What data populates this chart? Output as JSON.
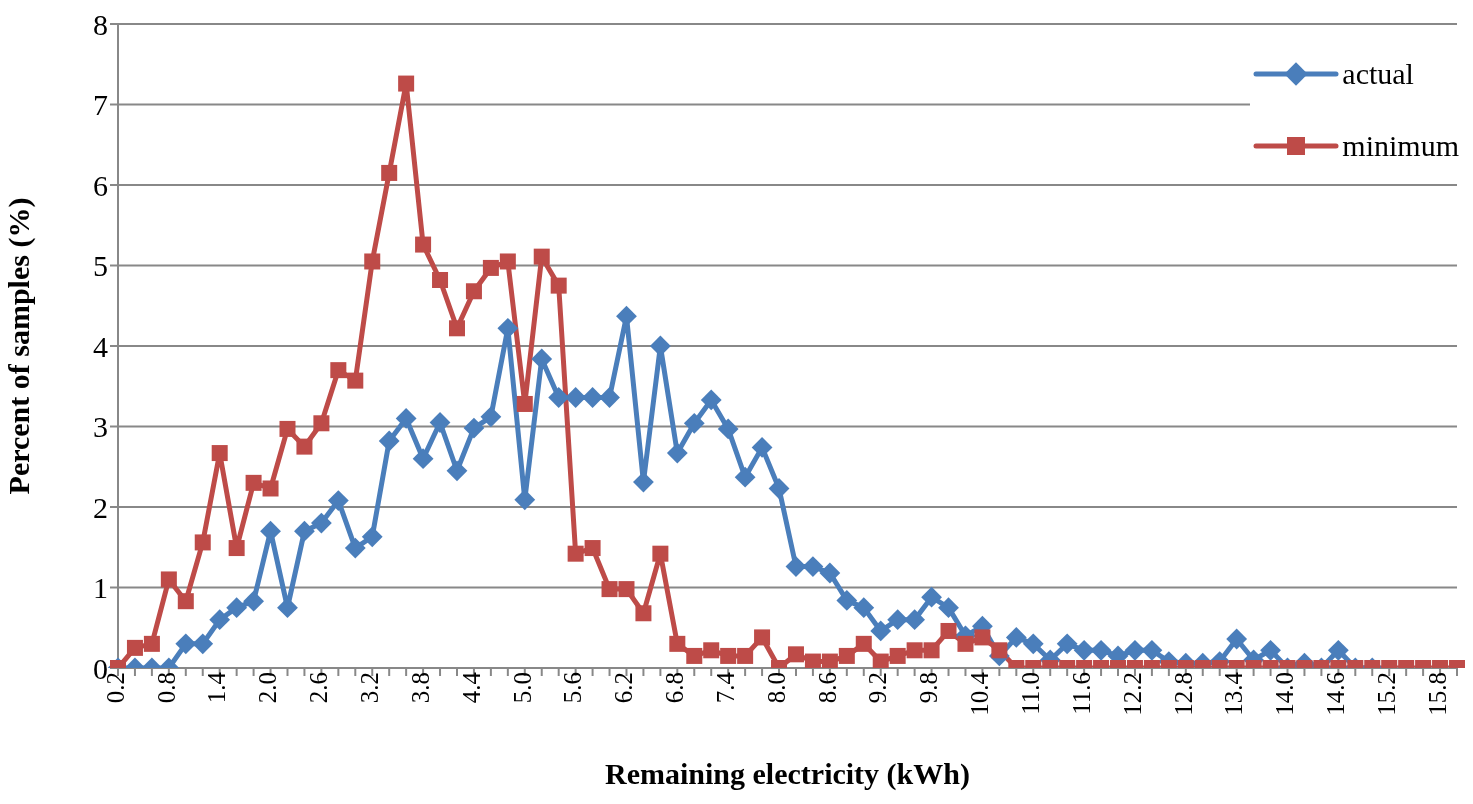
{
  "chart_data": {
    "type": "line",
    "xlabel": "Remaining electricity (kWh)",
    "ylabel": "Percent of samples (%)",
    "categories": [
      "0.2",
      null,
      null,
      "0.8",
      null,
      null,
      "1.4",
      null,
      null,
      "2.0",
      null,
      null,
      "2.6",
      null,
      null,
      "3.2",
      null,
      null,
      "3.8",
      null,
      null,
      "4.4",
      null,
      null,
      "5.0",
      null,
      null,
      "5.6",
      null,
      null,
      "6.2",
      null,
      null,
      "6.8",
      null,
      null,
      "7.4",
      null,
      null,
      "8.0",
      null,
      null,
      "8.6",
      null,
      null,
      "9.2",
      null,
      null,
      "9.8",
      null,
      null,
      "10.4",
      null,
      null,
      "11.0",
      null,
      null,
      "11.6",
      null,
      null,
      "12.2",
      null,
      null,
      "12.8",
      null,
      null,
      "13.4",
      null,
      null,
      "14.0",
      null,
      null,
      "14.6",
      null,
      null,
      "15.2",
      null,
      null,
      "15.8",
      null
    ],
    "series": [
      {
        "name": "actual",
        "color": "#4a7ebb",
        "marker": "diamond",
        "values": [
          0,
          0,
          0,
          0,
          0.3,
          0.3,
          0.6,
          0.75,
          0.83,
          1.7,
          0.75,
          1.7,
          1.8,
          2.08,
          1.49,
          1.63,
          2.82,
          3.1,
          2.6,
          3.05,
          2.45,
          2.98,
          3.12,
          4.22,
          2.09,
          3.84,
          3.36,
          3.36,
          3.36,
          3.36,
          4.37,
          2.31,
          4.0,
          2.67,
          3.04,
          3.33,
          2.97,
          2.37,
          2.74,
          2.23,
          1.26,
          1.26,
          1.18,
          0.84,
          0.75,
          0.46,
          0.6,
          0.6,
          0.88,
          0.75,
          0.4,
          0.52,
          0.15,
          0.38,
          0.3,
          0.1,
          0.3,
          0.22,
          0.22,
          0.15,
          0.22,
          0.22,
          0.08,
          0.06,
          0.06,
          0.08,
          0.36,
          0.1,
          0.22,
          0,
          0.06,
          0,
          0.22,
          0,
          0,
          null,
          null,
          null,
          null,
          null
        ]
      },
      {
        "name": "minimum",
        "color": "#be4b48",
        "marker": "square",
        "values": [
          0,
          0.25,
          0.3,
          1.1,
          0.83,
          1.56,
          2.67,
          1.49,
          2.3,
          2.23,
          2.97,
          2.75,
          3.04,
          3.7,
          3.57,
          5.05,
          6.15,
          7.26,
          5.26,
          4.82,
          4.22,
          4.68,
          4.97,
          5.05,
          3.28,
          5.11,
          4.75,
          1.42,
          1.49,
          0.98,
          0.98,
          0.68,
          1.42,
          0.3,
          0.15,
          0.22,
          0.15,
          0.15,
          0.38,
          0,
          0.17,
          0.08,
          0.08,
          0.15,
          0.3,
          0.08,
          0.15,
          0.22,
          0.22,
          0.46,
          0.3,
          0.38,
          0.22,
          0,
          0,
          0,
          0,
          0,
          0,
          0,
          0,
          0,
          0,
          0,
          0,
          0,
          0,
          0,
          0,
          0,
          0,
          0,
          0,
          0,
          0,
          0,
          0,
          0,
          0,
          0
        ]
      }
    ],
    "ylim": [
      0,
      8
    ],
    "yticks": [
      0,
      1,
      2,
      3,
      4,
      5,
      6,
      7,
      8
    ],
    "grid": "y",
    "legend": "top right",
    "line_style": "solid"
  }
}
